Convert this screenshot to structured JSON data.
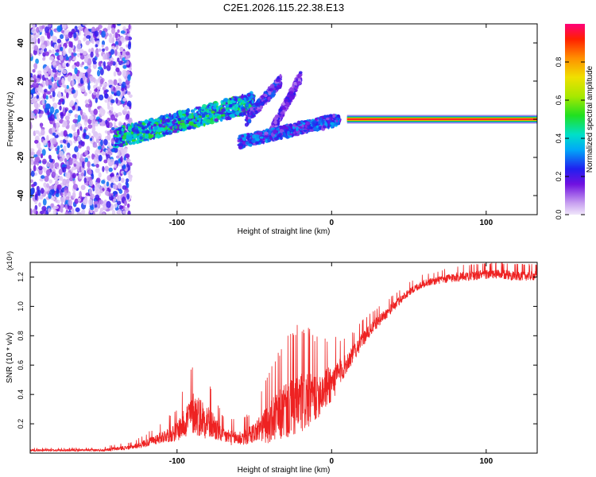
{
  "figure": {
    "title": "C2E1.2026.115.22.38.E13"
  },
  "chart_data": [
    {
      "type": "heatmap",
      "title": "C2E1.2026.115.22.38.E13",
      "xlabel": "Height of straight line (km)",
      "ylabel": "Frequency (Hz)",
      "xlim": [
        -195,
        133
      ],
      "ylim": [
        -50,
        50
      ],
      "xticks": [
        -100,
        0,
        100
      ],
      "xtick_labels": [
        "-100",
        "0",
        "100"
      ],
      "yticks": [
        -40,
        -20,
        0,
        20,
        40
      ],
      "ytick_labels": [
        "-40",
        "-20",
        "0",
        "20",
        "40"
      ],
      "colorbar": {
        "label": "Normalized spectral amplitude",
        "range": [
          0,
          1
        ],
        "ticks": [
          0.0,
          0.2,
          0.4,
          0.6,
          0.8
        ],
        "tick_labels": [
          "0.0",
          "0.2",
          "0.4",
          "0.6",
          "0.8"
        ]
      },
      "features": [
        {
          "name": "noise region",
          "x_range": [
            -195,
            -130
          ],
          "freq_range": [
            -50,
            50
          ],
          "amplitude": 0.15
        },
        {
          "name": "rising scintillation band",
          "x_range": [
            -140,
            -50
          ],
          "freq_start": -10,
          "freq_end": 9,
          "amplitude": 0.45
        },
        {
          "name": "branch 1",
          "x_range": [
            -55,
            -33
          ],
          "freq_start": 0,
          "freq_end": 20,
          "amplitude": 0.25
        },
        {
          "name": "branch 2",
          "x_range": [
            -40,
            -20
          ],
          "freq_start": -8,
          "freq_end": 22,
          "amplitude": 0.2
        },
        {
          "name": "lower band",
          "x_range": [
            -60,
            5
          ],
          "freq_start": -12,
          "freq_end": 0,
          "amplitude": 0.3
        },
        {
          "name": "carrier",
          "x_range": [
            10,
            133
          ],
          "freq": 0,
          "amplitude": 0.95
        }
      ]
    },
    {
      "type": "line",
      "title": "",
      "xlabel": "Height of straight line (km)",
      "ylabel": "SNR (10 * v/v)",
      "y_multiplier": "(x10⁴)",
      "xlim": [
        -195,
        133
      ],
      "ylim": [
        0,
        1.3
      ],
      "xticks": [
        -100,
        0,
        100
      ],
      "xtick_labels": [
        "-100",
        "0",
        "100"
      ],
      "yticks": [
        0.2,
        0.4,
        0.6,
        0.8,
        1.0,
        1.2
      ],
      "ytick_labels": [
        "0.2",
        "0.4",
        "0.6",
        "0.8",
        "1.0",
        "1.2"
      ],
      "series": [
        {
          "name": "SNR",
          "color": "#ee2222",
          "x": [
            -195,
            -150,
            -140,
            -130,
            -120,
            -110,
            -100,
            -90,
            -80,
            -70,
            -60,
            -50,
            -40,
            -30,
            -20,
            -10,
            0,
            10,
            20,
            30,
            40,
            50,
            60,
            70,
            80,
            90,
            100,
            110,
            120,
            133
          ],
          "y": [
            0.02,
            0.02,
            0.03,
            0.04,
            0.07,
            0.11,
            0.15,
            0.28,
            0.22,
            0.12,
            0.1,
            0.14,
            0.22,
            0.3,
            0.35,
            0.4,
            0.48,
            0.62,
            0.78,
            0.9,
            1.0,
            1.1,
            1.16,
            1.18,
            1.2,
            1.21,
            1.22,
            1.22,
            1.21,
            1.21
          ],
          "spread": [
            0.01,
            0.01,
            0.02,
            0.02,
            0.04,
            0.06,
            0.1,
            0.22,
            0.18,
            0.08,
            0.08,
            0.1,
            0.22,
            0.3,
            0.35,
            0.25,
            0.2,
            0.1,
            0.08,
            0.06,
            0.05,
            0.04,
            0.04,
            0.04,
            0.05,
            0.05,
            0.05,
            0.05,
            0.05,
            0.05
          ]
        }
      ]
    }
  ]
}
